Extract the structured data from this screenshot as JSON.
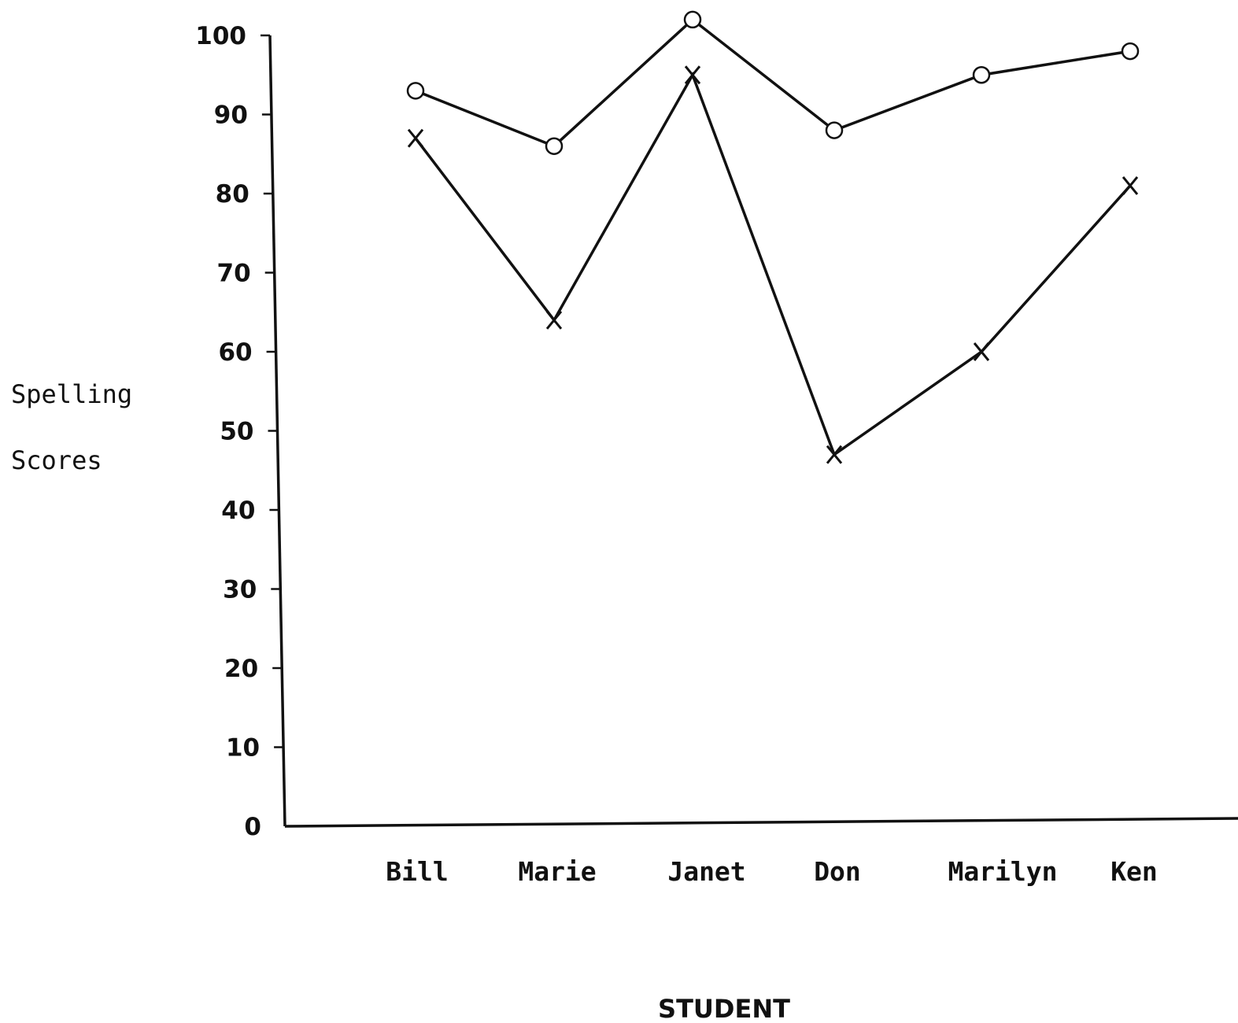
{
  "chart_data": {
    "type": "line",
    "title": "",
    "xlabel": "STUDENT",
    "ylabel_lines": [
      "Spelling",
      "Scores"
    ],
    "categories": [
      "Bill",
      "Marie",
      "Janet",
      "Don",
      "Marilyn",
      "Ken"
    ],
    "yticks": [
      0,
      10,
      20,
      30,
      40,
      50,
      60,
      70,
      80,
      90,
      100
    ],
    "ylim": [
      0,
      100
    ],
    "grid": false,
    "legend": "none",
    "series": [
      {
        "marker": "o",
        "values": [
          93,
          86,
          102,
          88,
          95,
          98
        ]
      },
      {
        "marker": "x",
        "values": [
          87,
          64,
          95,
          47,
          60,
          81
        ]
      }
    ]
  }
}
